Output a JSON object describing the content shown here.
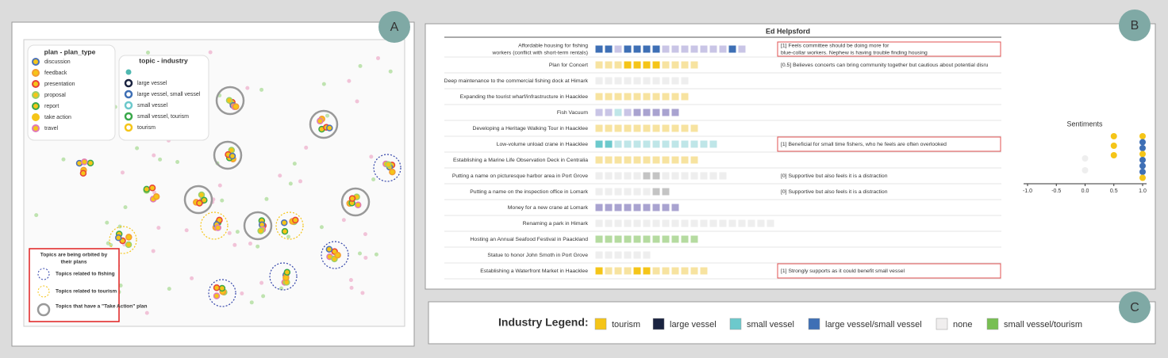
{
  "panel_labels": [
    "A",
    "B",
    "C"
  ],
  "panel_a": {
    "plan_legend": {
      "title": "plan - plan_type",
      "items": [
        {
          "label": "discussion",
          "color": "#4f73b8"
        },
        {
          "label": "feedback",
          "color": "#f39c34"
        },
        {
          "label": "presentation",
          "color": "#e8423a"
        },
        {
          "label": "proposal",
          "color": "#9ad06b"
        },
        {
          "label": "report",
          "color": "#3aa84a"
        },
        {
          "label": "take action",
          "color": "#f5c518"
        },
        {
          "label": "travel",
          "color": "#e07ab8"
        }
      ]
    },
    "topic_legend": {
      "title": "topic - industry",
      "items": [
        {
          "label": "large vessel",
          "color": "#1a2340"
        },
        {
          "label": "large vessel, small vessel",
          "color": "#3e6fb5"
        },
        {
          "label": "small vessel",
          "color": "#6cc9cc"
        },
        {
          "label": "small vessel, tourism",
          "color": "#3aa84a"
        },
        {
          "label": "tourism",
          "color": "#f5c518"
        }
      ]
    },
    "note": {
      "title_lines": [
        "Topics are being orbited by",
        "their plans"
      ],
      "items": [
        "Topics related to fishing",
        "Topics related to tourism",
        "Topics that have a \"Take Action\" plan"
      ]
    }
  },
  "panel_b": {
    "title": "Ed Helpsford",
    "rows": [
      {
        "label_lines": [
          "Affordable housing for fishing",
          "workers (conflict with short-term rentals)"
        ],
        "cells": [
          "#3e6fb5",
          "#3e6fb5",
          "#c9c5e6",
          "#3e6fb5",
          "#3e6fb5",
          "#3e6fb5",
          "#3e6fb5",
          "#c9c5e6",
          "#c9c5e6",
          "#c9c5e6",
          "#c9c5e6",
          "#c9c5e6",
          "#c9c5e6",
          "#c9c5e6",
          "#3e6fb5",
          "#c9c5e6"
        ],
        "comment_lines": [
          "[1] Feels committee should be doing more for",
          "blue-collar workers. Nephew is having trouble finding housing"
        ],
        "highlight": true
      },
      {
        "label_lines": [
          "Plan for Concert"
        ],
        "cells": [
          "#f7e3a0",
          "#f7e3a0",
          "#f7e3a0",
          "#f5c518",
          "#f5c518",
          "#f5c518",
          "#f5c518",
          "#f7e3a0",
          "#f7e3a0",
          "#f7e3a0",
          "#f7e3a0"
        ],
        "comment_lines": [
          "[0.5] Believes concerts can bring community together but cautious about potential disru"
        ],
        "highlight": false
      },
      {
        "label_lines": [
          "Deep maintenance to the commercial fishing dock at Himark"
        ],
        "cells": [
          "#eeeeee",
          "#eeeeee",
          "#eeeeee",
          "#eeeeee",
          "#eeeeee",
          "#eeeeee",
          "#eeeeee",
          "#eeeeee",
          "#eeeeee",
          "#eeeeee"
        ],
        "highlight": false
      },
      {
        "label_lines": [
          "Expanding the tourist wharf/infrastructure in Haacklee"
        ],
        "cells": [
          "#f7e3a0",
          "#f7e3a0",
          "#f7e3a0",
          "#f7e3a0",
          "#f7e3a0",
          "#f7e3a0",
          "#f7e3a0",
          "#f7e3a0",
          "#f7e3a0",
          "#f7e3a0"
        ],
        "highlight": false
      },
      {
        "label_lines": [
          "Fish Vacuum"
        ],
        "cells": [
          "#c9c5e6",
          "#c9c5e6",
          "#bfe6e8",
          "#c9c5e6",
          "#a9a3d0",
          "#a9a3d0",
          "#a9a3d0",
          "#a9a3d0",
          "#a9a3d0"
        ],
        "highlight": false
      },
      {
        "label_lines": [
          "Developing a Heritage Walking Tour in Haacklee"
        ],
        "cells": [
          "#f7e3a0",
          "#f7e3a0",
          "#f7e3a0",
          "#f7e3a0",
          "#f7e3a0",
          "#f7e3a0",
          "#f7e3a0",
          "#f7e3a0",
          "#f7e3a0",
          "#f7e3a0",
          "#f7e3a0"
        ],
        "highlight": false
      },
      {
        "label_lines": [
          "Low-volume unload crane in Haacklee"
        ],
        "cells": [
          "#6cc9cc",
          "#6cc9cc",
          "#bfe6e8",
          "#bfe6e8",
          "#bfe6e8",
          "#bfe6e8",
          "#bfe6e8",
          "#bfe6e8",
          "#bfe6e8",
          "#bfe6e8",
          "#bfe6e8",
          "#bfe6e8",
          "#bfe6e8"
        ],
        "comment_lines": [
          "[1] Beneficial for small time fishers, who he feels are often overlooked"
        ],
        "highlight": true
      },
      {
        "label_lines": [
          "Establishing a Marine Life Observation Deck in Centralia"
        ],
        "cells": [
          "#f7e3a0",
          "#f7e3a0",
          "#f7e3a0",
          "#f7e3a0",
          "#f7e3a0",
          "#f7e3a0",
          "#f7e3a0",
          "#f7e3a0",
          "#f7e3a0",
          "#f7e3a0",
          "#f7e3a0"
        ],
        "highlight": false
      },
      {
        "label_lines": [
          "Putting a name on picturesque harbor area in Port Grove"
        ],
        "cells": [
          "#eeeeee",
          "#eeeeee",
          "#eeeeee",
          "#eeeeee",
          "#eeeeee",
          "#c4c4c4",
          "#c4c4c4",
          "#eeeeee",
          "#eeeeee",
          "#eeeeee",
          "#eeeeee",
          "#eeeeee",
          "#eeeeee",
          "#eeeeee"
        ],
        "comment_lines": [
          "[0] Supportive but also feels it is a distraction"
        ],
        "highlight": false
      },
      {
        "label_lines": [
          "Putting a name on the inspection office in Lomark"
        ],
        "cells": [
          "#eeeeee",
          "#eeeeee",
          "#eeeeee",
          "#eeeeee",
          "#eeeeee",
          "#eeeeee",
          "#c4c4c4",
          "#c4c4c4"
        ],
        "comment_lines": [
          "[0] Supportive but also feels it is a distraction"
        ],
        "highlight": false
      },
      {
        "label_lines": [
          "Money for a new crane at Lomark"
        ],
        "cells": [
          "#a9a3d0",
          "#a9a3d0",
          "#a9a3d0",
          "#a9a3d0",
          "#a9a3d0",
          "#a9a3d0",
          "#a9a3d0",
          "#a9a3d0",
          "#a9a3d0"
        ],
        "highlight": false
      },
      {
        "label_lines": [
          "Renaming a park in Himark"
        ],
        "cells": [
          "#eeeeee",
          "#eeeeee",
          "#eeeeee",
          "#eeeeee",
          "#eeeeee",
          "#eeeeee",
          "#eeeeee",
          "#eeeeee",
          "#eeeeee",
          "#eeeeee",
          "#eeeeee",
          "#eeeeee",
          "#eeeeee",
          "#eeeeee",
          "#eeeeee",
          "#eeeeee",
          "#eeeeee",
          "#eeeeee",
          "#eeeeee"
        ],
        "highlight": false
      },
      {
        "label_lines": [
          "Hosting an Annual Seafood Festival in Paackland"
        ],
        "cells": [
          "#b5dba0",
          "#b5dba0",
          "#b5dba0",
          "#b5dba0",
          "#b5dba0",
          "#b5dba0",
          "#b5dba0",
          "#b5dba0",
          "#b5dba0",
          "#b5dba0",
          "#b5dba0"
        ],
        "highlight": false
      },
      {
        "label_lines": [
          "Statue to honor John Smoth in Port Grove"
        ],
        "cells": [
          "#eeeeee",
          "#eeeeee",
          "#eeeeee",
          "#eeeeee",
          "#eeeeee",
          "#eeeeee"
        ],
        "highlight": false
      },
      {
        "label_lines": [
          "Establishing a Waterfront Market in Haacklee"
        ],
        "cells": [
          "#f5c518",
          "#f7e3a0",
          "#f7e3a0",
          "#f7e3a0",
          "#f5c518",
          "#f5c518",
          "#f7e3a0",
          "#f7e3a0",
          "#f7e3a0",
          "#f7e3a0",
          "#f7e3a0",
          "#f7e3a0"
        ],
        "comment_lines": [
          "[1] Strongly supports as it could benefit small vessel"
        ],
        "highlight": true
      }
    ],
    "sentiments": {
      "title": "Sentiments",
      "xlim": [
        -1,
        1
      ],
      "xticks": [
        {
          "value": -1,
          "label": "-1.0"
        },
        {
          "value": -0.5,
          "label": "-0.5"
        },
        {
          "value": 0,
          "label": "0.0"
        },
        {
          "value": 0.5,
          "label": "0.5"
        },
        {
          "value": 1,
          "label": "1.0"
        }
      ],
      "points": [
        {
          "x": 0.5,
          "color": "#f5c518"
        },
        {
          "x": 0.5,
          "color": "#f5c518"
        },
        {
          "x": 0.5,
          "color": "#f5c518"
        },
        {
          "x": 0,
          "color": "#eeeeee"
        },
        {
          "x": 0,
          "color": "#eeeeee"
        },
        {
          "x": 1,
          "color": "#f5c518"
        },
        {
          "x": 1,
          "color": "#3e6fb5"
        },
        {
          "x": 1,
          "color": "#3e6fb5"
        },
        {
          "x": 1,
          "color": "#f5c518"
        },
        {
          "x": 1,
          "color": "#3e6fb5"
        },
        {
          "x": 1,
          "color": "#3e6fb5"
        },
        {
          "x": 1,
          "color": "#3e6fb5"
        },
        {
          "x": 1,
          "color": "#f5c518"
        }
      ]
    }
  },
  "panel_c": {
    "title": "Industry Legend:",
    "items": [
      {
        "label": "tourism",
        "color": "#f5c518"
      },
      {
        "label": "large vessel",
        "color": "#1a2340"
      },
      {
        "label": "small vessel",
        "color": "#6cc9cc"
      },
      {
        "label": "large vessel/small vessel",
        "color": "#3e6fb5"
      },
      {
        "label": "none",
        "color": "#f0eeee"
      },
      {
        "label": "small vessel/tourism",
        "color": "#78bf52"
      }
    ]
  }
}
